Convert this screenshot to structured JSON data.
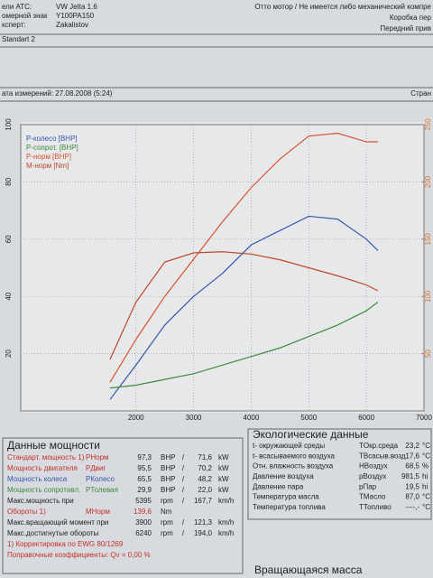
{
  "header": {
    "left": [
      [
        "ели АТС:",
        "VW Jetta 1.6"
      ],
      [
        "омерной знак",
        "Y100PA150"
      ],
      [
        "ксперт:",
        "Zakalistov"
      ]
    ],
    "right": [
      "Отто мотор / Не имеется либо механический компре",
      "Коробка пер",
      "Передний прив"
    ],
    "program": "Standart 2",
    "date": "ата измерений: 27.08.2008 (5:24)",
    "page": "Стран"
  },
  "chart_data": {
    "type": "line",
    "x": [
      1550,
      2000,
      2500,
      3000,
      3500,
      4000,
      4500,
      5000,
      5500,
      6000,
      6200
    ],
    "series": [
      {
        "name": "P-колесо [BHP]",
        "color": "#3a55b0",
        "values": [
          4,
          16,
          30,
          40,
          48,
          58,
          63,
          68,
          67,
          60,
          56
        ]
      },
      {
        "name": "P-сопрот. [BHP]",
        "color": "#3f8a3a",
        "values": [
          8,
          9,
          11,
          13,
          16,
          19,
          22,
          26,
          30,
          35,
          38
        ]
      },
      {
        "name": "P-норм [BHP]",
        "color": "#d8542e",
        "values": [
          10,
          25,
          40,
          53,
          66,
          78,
          88,
          96,
          97,
          94,
          94
        ]
      },
      {
        "name": "M-норм [Nm]",
        "color": "#c0462a",
        "axis": "y2",
        "values": [
          45,
          95,
          130,
          138,
          139,
          137,
          132,
          125,
          118,
          110,
          105
        ]
      }
    ],
    "xlim": [
      0,
      7000
    ],
    "xticks": [
      2000,
      3000,
      4000,
      5000,
      6000,
      7000
    ],
    "ylim": [
      0,
      100
    ],
    "yticks": [
      20,
      40,
      60,
      80,
      100
    ],
    "y2lim": [
      0,
      250
    ],
    "y2ticks": [
      50,
      100,
      150,
      200,
      250
    ],
    "y2color": "#d8742e",
    "grid": true,
    "legend": "upper left"
  },
  "power": {
    "title": "Данные мощности",
    "rows": [
      {
        "label": "Стандарт. мощность 1)",
        "symbol": "PНорм",
        "v1": "97,3",
        "u1": "BHP",
        "sep": "/",
        "v2": "71,6",
        "u2": "kW",
        "color": "#c8302a"
      },
      {
        "label": "Мощность двигателя",
        "symbol": "PДвиг",
        "v1": "95,5",
        "u1": "BHP",
        "sep": "/",
        "v2": "70,2",
        "u2": "kW",
        "color": "#c8302a"
      },
      {
        "label": "Мощность колеса",
        "symbol": "PКолесо",
        "v1": "65,5",
        "u1": "BHP",
        "sep": "/",
        "v2": "48,2",
        "u2": "kW",
        "color": "#3a55b0"
      },
      {
        "label": "Мощность сопротивл.",
        "symbol": "PТолевая",
        "v1": "29,9",
        "u1": "BHP",
        "sep": "/",
        "v2": "22,0",
        "u2": "kW",
        "color": "#3f8a3a"
      },
      {
        "label": "Макс.мощность при",
        "v1": "5395",
        "u1": "rpm",
        "sep": "/",
        "v2": "167,7",
        "u2": "km/h",
        "color": "#222222"
      },
      {
        "label": "Обороты 1)",
        "symbol": "MНорм",
        "v1": "139,6",
        "u1": "Nm",
        "color": "#c8302a"
      },
      {
        "label": "Макс.вращающий момент при",
        "v1": "3900",
        "u1": "rpm",
        "sep": "/",
        "v2": "121,3",
        "u2": "km/h",
        "color": "#222222"
      },
      {
        "label": "Макс.достигнутые обороты",
        "v1": "6240",
        "u1": "rpm",
        "sep": "/",
        "v2": "194,0",
        "u2": "km/h",
        "color": "#222222"
      },
      {
        "label": "1) Корректировка по EWG 80/1269",
        "color": "#c8302a"
      },
      {
        "label": "Поправочные коэффициенты: Qv = 0,00 %",
        "color": "#c8302a"
      }
    ]
  },
  "eco": {
    "title": "Экологические данные",
    "rows": [
      {
        "label": "t- окружающей среды",
        "symbol": "TОкр.среда",
        "value": "23,2",
        "unit": "°C"
      },
      {
        "label": "t- всасываемого воздуха",
        "symbol": "TВсасыв.возд.",
        "value": "17,6",
        "unit": "°C"
      },
      {
        "label": "Отн. влажность воздуха",
        "symbol": "HВоздух",
        "value": "68,5",
        "unit": "%"
      },
      {
        "label": "Давление воздуха",
        "symbol": "pВоздух",
        "value": "981,5",
        "unit": "hi"
      },
      {
        "label": "Давление пара",
        "symbol": "pПар",
        "value": "19,5",
        "unit": "hi"
      },
      {
        "label": "Температура масла",
        "symbol": "TМасло",
        "value": "87,0",
        "unit": "°C"
      },
      {
        "label": "Температура топлива",
        "symbol": "TТопливо",
        "value": "----,-",
        "unit": "°C"
      }
    ]
  },
  "footer": "Вращающаяся масса"
}
